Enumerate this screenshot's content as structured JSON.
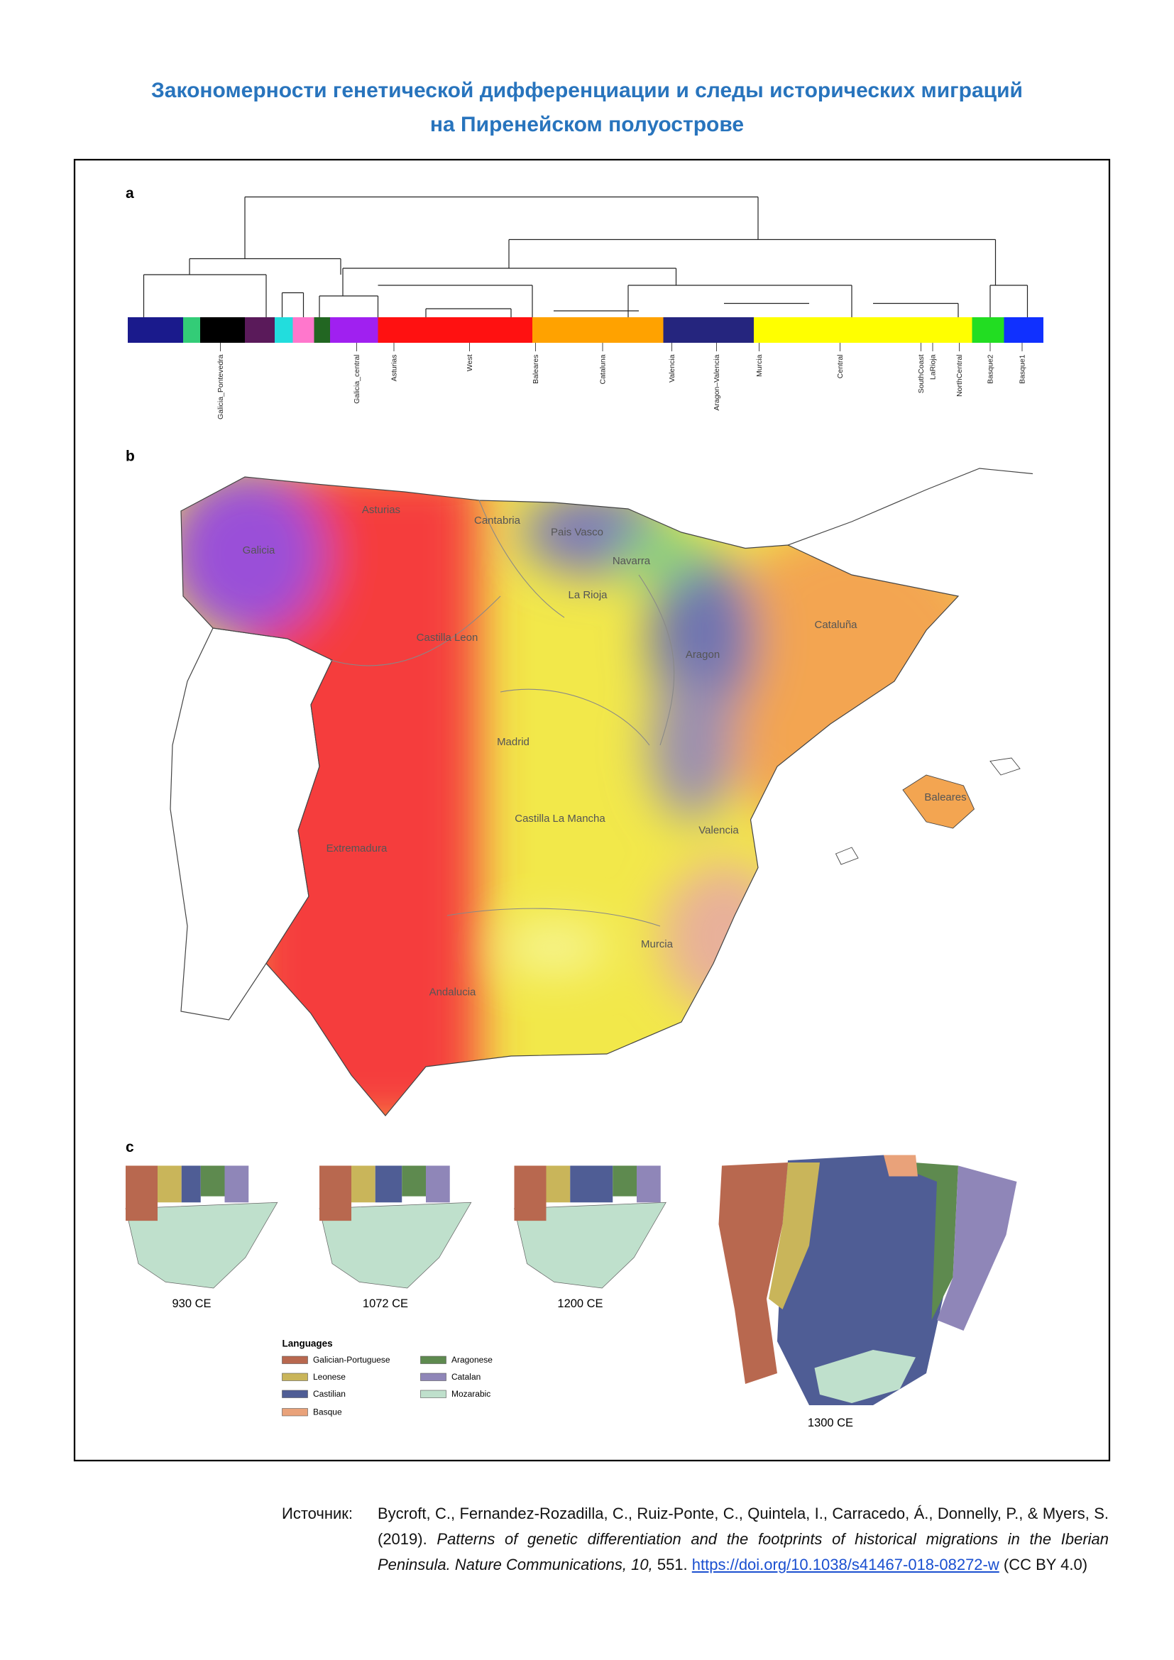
{
  "header": {
    "title_lines": [
      "Закономерности генетической дифференциации и следы исторических миграций",
      "на Пиренейском полуострове"
    ]
  },
  "figure": {
    "panel_a": {
      "label": "a",
      "clusters": [
        "Galicia_Pontevedra",
        "Galicia_central",
        "Asturias",
        "West",
        "Baleares",
        "Cataluna",
        "Valencia",
        "Aragon–Valencia",
        "Murcia",
        "Central",
        "SouthCoast",
        "LaRioja",
        "NorthCentral",
        "Basque2",
        "Basque1"
      ]
    },
    "panel_b": {
      "label": "b",
      "regions": [
        "Asturias",
        "Cantabria",
        "Pais Vasco",
        "Navarra",
        "Galicia",
        "La Rioja",
        "Castilla Leon",
        "Aragon",
        "Cataluña",
        "Madrid",
        "Castilla La Mancha",
        "Valencia",
        "Baleares",
        "Extremadura",
        "Murcia",
        "Andalucia"
      ]
    },
    "panel_c": {
      "label": "c",
      "maps": [
        "930 CE",
        "1072 CE",
        "1200 CE",
        "1300 CE"
      ],
      "legend_title": "Languages",
      "legend": [
        "Galician-Portuguese",
        "Leonese",
        "Castilian",
        "Basque",
        "Aragonese",
        "Catalan",
        "Mozarabic"
      ]
    }
  },
  "citation": {
    "label": "Источник:",
    "authors": "Bycroft, C., Fernandez-Rozadilla, C., Ruiz-Ponte, C., Quintela, I., Carracedo, Á., Donnelly, P., & Myers, S.",
    "year": "(2019).",
    "title": "Patterns of genetic differentiation and the footprints of historical migrations in the Iberian Peninsula.",
    "journal": "Nature Communications,",
    "volume": "10,",
    "pages": "551.",
    "doi": "https://doi.org/10.1038/s41467-018-08272-w",
    "license": "(CC BY 4.0)"
  }
}
